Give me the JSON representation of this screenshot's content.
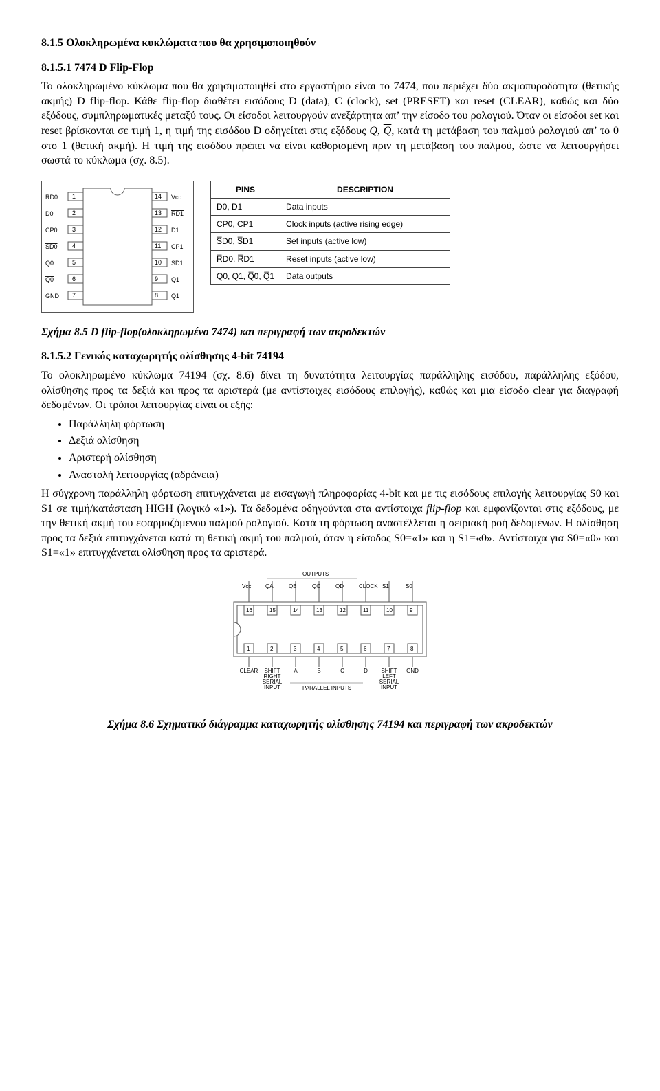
{
  "section": {
    "h1": "8.1.5 Ολοκληρωμένα κυκλώματα που θα χρησιμοποιηθούν",
    "h2": "8.1.5.1 7474 D Flip-Flop",
    "p1a": "Το ολοκληρωμένο κύκλωμα που θα χρησιμοποιηθεί στο εργαστήριο είναι το 7474, που περιέχει δύο ακμοπυροδότητα (θετικής ακμής) D flip-flop. Κάθε flip-flop διαθέτει εισόδους D (data), C (clock), set (PRESET) και reset (CLEAR), καθώς και δύο εξόδους, συμπληρωματικές μεταξύ τους. Οι είσοδοι λειτουργούν ανεξάρτητα απ’ την είσοδο του ρολογιού. Όταν οι είσοδοι set και reset βρίσκονται σε τιμή 1, η τιμή της εισόδου D οδηγείται στις εξόδους ",
    "p1b": ", κατά τη μετάβαση του παλμού ρολογιού απ’ το 0 στο 1 (θετική ακμή). Η τιμή της εισόδου πρέπει να είναι καθορισμένη πριν τη μετάβαση του παλμού, ώστε να λειτουργήσει σωστά το κύκλωμα (σχ. 8.5).",
    "q1": "Q",
    "q2": "Q",
    "caption1a": "Σχήμα 8.5 D flip-flop(ολοκληρωμένο 7474) και περιγραφή των ακροδεκτών"
  },
  "pins": {
    "left": [
      {
        "n": "1",
        "lbl": "RD0",
        "ov": true
      },
      {
        "n": "2",
        "lbl": "D0",
        "ov": false
      },
      {
        "n": "3",
        "lbl": "CP0",
        "ov": false
      },
      {
        "n": "4",
        "lbl": "SD0",
        "ov": true
      },
      {
        "n": "5",
        "lbl": "Q0",
        "ov": false
      },
      {
        "n": "6",
        "lbl": "Q0",
        "ov": true
      },
      {
        "n": "7",
        "lbl": "GND",
        "ov": false
      }
    ],
    "right": [
      {
        "n": "14",
        "lbl": "Vcc",
        "ov": false
      },
      {
        "n": "13",
        "lbl": "RD1",
        "ov": true
      },
      {
        "n": "12",
        "lbl": "D1",
        "ov": false
      },
      {
        "n": "11",
        "lbl": "CP1",
        "ov": false
      },
      {
        "n": "10",
        "lbl": "SD1",
        "ov": true
      },
      {
        "n": "9",
        "lbl": "Q1",
        "ov": false
      },
      {
        "n": "8",
        "lbl": "Q1",
        "ov": true
      }
    ]
  },
  "table": {
    "head": {
      "c1": "PINS",
      "c2": "DESCRIPTION"
    },
    "rows": [
      {
        "c1": "D0, D1",
        "c2": "Data inputs"
      },
      {
        "c1": "CP0, CP1",
        "c2": "Clock inputs (active rising edge)"
      },
      {
        "c1": "S̅D0, S̅D1",
        "c2": "Set inputs (active low)"
      },
      {
        "c1": "R̅D0, R̅D1",
        "c2": "Reset inputs (active low)"
      },
      {
        "c1": "Q0, Q1, Q̅0, Q̅1",
        "c2": "Data outputs"
      }
    ]
  },
  "section2": {
    "h3": "8.1.5.2 Γενικός καταχωρητής ολίσθησης 4-bit 74194",
    "p2": "Το ολοκληρωμένο κύκλωμα 74194 (σχ. 8.6) δίνει τη δυνατότητα λειτουργίας παράλληλης εισόδου, παράλληλης εξόδου, ολίσθησης προς τα δεξιά και προς τα αριστερά (με αντίστοιχες εισόδους επιλογής), καθώς και μια είσοδο clear για διαγραφή δεδομένων. Οι τρόποι λειτουργίας είναι οι εξής:",
    "li1": "Παράλληλη φόρτωση",
    "li2": "Δεξιά ολίσθηση",
    "li3": "Αριστερή ολίσθηση",
    "li4": "Αναστολή λειτουργίας (αδράνεια)",
    "p3": "Η σύγχρονη παράλληλη φόρτωση επιτυγχάνεται με εισαγωγή πληροφορίας 4-bit και με τις εισόδους επιλογής λειτουργίας S0 και S1 σε τιμή/κατάσταση HIGH (λογικό «1»). Τα δεδομένα οδηγούνται στα αντίστοιχα ",
    "p3i": "flip-flop",
    "p3b": " και εμφανίζονται στις εξόδους, με την θετική ακμή του εφαρμοζόμενου παλμού ρολογιού. Κατά τη φόρτωση αναστέλλεται η σειριακή ροή δεδομένων. Η ολίσθηση προς τα δεξιά επιτυγχάνεται κατά τη θετική ακμή του παλμού, όταν η είσοδος S0=«1» και η S1=«0». Αντίστοιχα για S0=«0» και S1=«1» επιτυγχάνεται ολίσθηση προς τα αριστερά.",
    "caption2": "Σχήμα 8.6 Σχηματικό διάγραμμα καταχωρητής ολίσθησης 74194 και περιγραφή των ακροδεκτών"
  },
  "chip2": {
    "topHeader": "OUTPUTS",
    "top": [
      "Vcc",
      "QA",
      "QB",
      "QC",
      "QD",
      "CLOCK",
      "S1",
      "S0"
    ],
    "topNums": [
      "16",
      "15",
      "14",
      "13",
      "12",
      "11",
      "10",
      "9"
    ],
    "bot": [
      "CLEAR",
      "SHIFT RIGHT SERIAL INPUT",
      "A",
      "B",
      "C",
      "D",
      "SHIFT LEFT SERIAL INPUT",
      "GND"
    ],
    "botNums": [
      "1",
      "2",
      "3",
      "4",
      "5",
      "6",
      "7",
      "8"
    ],
    "botHeader": "PARALLEL INPUTS"
  }
}
